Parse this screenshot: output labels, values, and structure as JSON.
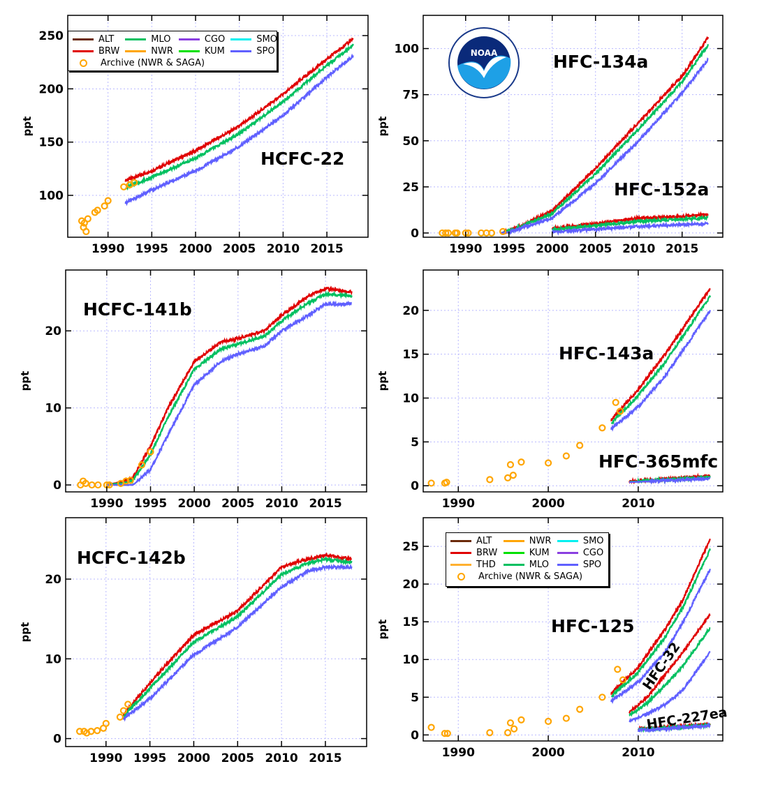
{
  "station_colors": {
    "ALT": "#6b2a0a",
    "BRW": "#e00000",
    "MLO": "#00c060",
    "NWR": "#ffa500",
    "CGO": "#8a3fe0",
    "KUM": "#00e000",
    "SMO": "#00f0f0",
    "SPO": "#6060ff",
    "THD": "#ffb030",
    "Archive": "#ffa500"
  },
  "legends": {
    "top": {
      "columns": 4,
      "items": [
        "ALT",
        "MLO",
        "CGO",
        "SMO",
        "BRW",
        "NWR",
        "KUM",
        "SPO"
      ],
      "archive": "Archive (NWR & SAGA)"
    },
    "bottom": {
      "columns": 3,
      "items": [
        "ALT",
        "NWR",
        "SMO",
        "BRW",
        "KUM",
        "CGO",
        "THD",
        "MLO",
        "SPO"
      ],
      "archive": "Archive (NWR & SAGA)"
    }
  },
  "logo": {
    "text": "NOAA",
    "ring_text": "NATIONAL OCEANIC AND ATMOSPHERIC ADMINISTRATION · U.S. DEPARTMENT OF COMMERCE"
  },
  "chart_data": [
    {
      "type": "line",
      "ylabel": "ppt",
      "xlim": [
        1985.4,
        2019.7
      ],
      "ylim": [
        60.7,
        269
      ],
      "xticks": [
        1990,
        1995,
        2000,
        2005,
        2010,
        2015
      ],
      "yticks": [
        100,
        150,
        200,
        250
      ],
      "grid": true,
      "legend": "top-left",
      "compounds": [
        {
          "name": "HCFC-22",
          "x": [
            1992,
            1995,
            2000,
            2005,
            2010,
            2015,
            2018
          ],
          "series": [
            {
              "name": "BRW",
              "values": [
                114,
                123,
                142,
                165,
                195,
                228,
                247
              ]
            },
            {
              "name": "MLO",
              "values": [
                107,
                117,
                135,
                158,
                188,
                222,
                241
              ]
            },
            {
              "name": "SPO",
              "values": [
                93,
                105,
                123,
                146,
                175,
                211,
                231
              ]
            }
          ]
        }
      ],
      "archive": [
        [
          1987,
          76
        ],
        [
          1987.2,
          70
        ],
        [
          1987.3,
          74
        ],
        [
          1987.5,
          66
        ],
        [
          1987.7,
          78
        ],
        [
          1988.5,
          84
        ],
        [
          1988.8,
          86
        ],
        [
          1989.6,
          90
        ],
        [
          1990,
          95
        ],
        [
          1991.8,
          108
        ],
        [
          1992.5,
          110
        ],
        [
          1993,
          112
        ]
      ]
    },
    {
      "type": "line",
      "ylabel": "ppt",
      "xlim": [
        1985.1,
        2019.7
      ],
      "ylim": [
        -2.3,
        118
      ],
      "xticks": [
        1990,
        1995,
        2000,
        2005,
        2010,
        2015
      ],
      "yticks": [
        0,
        25,
        50,
        75,
        100
      ],
      "grid": true,
      "compounds": [
        {
          "name": "HFC-134a",
          "x": [
            1994,
            1995,
            2000,
            2005,
            2010,
            2015,
            2018
          ],
          "series": [
            {
              "name": "BRW",
              "values": [
                0,
                1,
                12,
                35,
                60,
                85,
                106
              ]
            },
            {
              "name": "MLO",
              "values": [
                0,
                0.8,
                10.6,
                32,
                56.5,
                82,
                102
              ]
            },
            {
              "name": "SPO",
              "values": [
                0,
                0.5,
                8,
                27,
                50,
                76,
                94
              ]
            }
          ]
        },
        {
          "name": "HFC-152a",
          "x": [
            2000,
            2005,
            2010,
            2015,
            2018
          ],
          "series": [
            {
              "name": "BRW",
              "values": [
                2.5,
                5,
                8,
                9,
                10
              ]
            },
            {
              "name": "MLO",
              "values": [
                1.8,
                4,
                6.4,
                7.4,
                8.2
              ]
            },
            {
              "name": "SPO",
              "values": [
                0.5,
                2,
                3.5,
                4.5,
                5
              ]
            }
          ]
        }
      ],
      "archive": [
        [
          1987.3,
          0
        ],
        [
          1987.7,
          0
        ],
        [
          1988,
          0
        ],
        [
          1988.8,
          0
        ],
        [
          1989,
          0
        ],
        [
          1990,
          0
        ],
        [
          1990.3,
          0
        ],
        [
          1991.8,
          0
        ],
        [
          1992.4,
          0
        ],
        [
          1993,
          0
        ],
        [
          1994.3,
          0.8
        ]
      ]
    },
    {
      "type": "line",
      "ylabel": "ppt",
      "xlim": [
        1985.3,
        2019.7
      ],
      "ylim": [
        -0.9,
        27.9
      ],
      "xticks": [
        1990,
        1995,
        2000,
        2005,
        2010,
        2015
      ],
      "yticks": [
        0,
        10,
        20
      ],
      "grid": true,
      "compounds": [
        {
          "name": "HCFC-141b",
          "x": [
            1990,
            1992,
            1993,
            1995,
            1997,
            2000,
            2003,
            2005,
            2008,
            2010,
            2013,
            2015,
            2018
          ],
          "series": [
            {
              "name": "BRW",
              "values": [
                0,
                0.5,
                1,
                5,
                10,
                16,
                18.5,
                19,
                20,
                22,
                24.5,
                25.5,
                25
              ]
            },
            {
              "name": "MLO",
              "values": [
                0,
                0.3,
                0.6,
                4,
                8.8,
                15,
                17.6,
                18.3,
                19.3,
                21.3,
                23.6,
                24.8,
                24.5
              ]
            },
            {
              "name": "SPO",
              "values": [
                0,
                0,
                0,
                2,
                6.5,
                13,
                16,
                17,
                18,
                20,
                22,
                23.5,
                23.5
              ]
            }
          ]
        }
      ],
      "archive": [
        [
          1987,
          0
        ],
        [
          1987.3,
          0.5
        ],
        [
          1987.6,
          0.2
        ],
        [
          1988.3,
          0
        ],
        [
          1989,
          0
        ],
        [
          1990,
          0
        ],
        [
          1990.3,
          0
        ],
        [
          1991.6,
          0.2
        ],
        [
          1992.2,
          0.5
        ],
        [
          1992.7,
          0.6
        ],
        [
          1994,
          2.6
        ],
        [
          1995,
          4.3
        ]
      ]
    },
    {
      "type": "line",
      "ylabel": "ppt",
      "xlim": [
        1986.1,
        2019.4
      ],
      "ylim": [
        -0.7,
        24.6
      ],
      "xticks": [
        1990,
        2000,
        2010
      ],
      "yticks": [
        0,
        5,
        10,
        15,
        20
      ],
      "grid": true,
      "compounds": [
        {
          "name": "HFC-143a",
          "x": [
            2007,
            2010,
            2013,
            2015,
            2018
          ],
          "series": [
            {
              "name": "BRW",
              "values": [
                7.5,
                11,
                15,
                18,
                22.5
              ]
            },
            {
              "name": "MLO",
              "values": [
                7.1,
                10.3,
                14.1,
                17.1,
                21.6
              ]
            },
            {
              "name": "SPO",
              "values": [
                6.5,
                9,
                12.5,
                15.5,
                20
              ]
            }
          ]
        },
        {
          "name": "HFC-365mfc",
          "x": [
            2009,
            2018
          ],
          "series": [
            {
              "name": "BRW",
              "values": [
                0.5,
                1.1
              ]
            },
            {
              "name": "MLO",
              "values": [
                0.45,
                1.0
              ]
            },
            {
              "name": "SPO",
              "values": [
                0.4,
                0.8
              ]
            }
          ]
        }
      ],
      "archive": [
        [
          1987,
          0.3
        ],
        [
          1988.5,
          0.3
        ],
        [
          1988.7,
          0.4
        ],
        [
          1993.5,
          0.7
        ],
        [
          1995.5,
          0.9
        ],
        [
          1995.8,
          2.4
        ],
        [
          1996.1,
          1.2
        ],
        [
          1997,
          2.7
        ],
        [
          2000,
          2.6
        ],
        [
          2002,
          3.4
        ],
        [
          2003.5,
          4.6
        ],
        [
          2006,
          6.6
        ],
        [
          2007.5,
          9.5
        ],
        [
          2008,
          8.5
        ]
      ]
    },
    {
      "type": "line",
      "ylabel": "ppt",
      "xlim": [
        1985.4,
        2019.7
      ],
      "ylim": [
        -1,
        27.7
      ],
      "xticks": [
        1990,
        1995,
        2000,
        2005,
        2010,
        2015
      ],
      "yticks": [
        0,
        10,
        20
      ],
      "grid": true,
      "compounds": [
        {
          "name": "HCFC-142b",
          "x": [
            1992,
            1995,
            2000,
            2005,
            2010,
            2013,
            2015,
            2018
          ],
          "series": [
            {
              "name": "BRW",
              "values": [
                3,
                7,
                13,
                16,
                21.5,
                22.5,
                23,
                22.5
              ]
            },
            {
              "name": "MLO",
              "values": [
                2.8,
                6.3,
                12.1,
                15.3,
                20.6,
                22,
                22.5,
                22.1
              ]
            },
            {
              "name": "SPO",
              "values": [
                2.5,
                5,
                10.5,
                14,
                19,
                21,
                21.5,
                21.5
              ]
            }
          ]
        }
      ],
      "archive": [
        [
          1987,
          0.9
        ],
        [
          1987.5,
          0.9
        ],
        [
          1987.8,
          0.7
        ],
        [
          1988.3,
          0.9
        ],
        [
          1989,
          1
        ],
        [
          1989.7,
          1.3
        ],
        [
          1990,
          1.9
        ],
        [
          1991.6,
          2.7
        ],
        [
          1992,
          3.5
        ],
        [
          1992.5,
          4.3
        ]
      ]
    },
    {
      "type": "line",
      "ylabel": "ppt",
      "xlim": [
        1986.1,
        2019.4
      ],
      "ylim": [
        -0.8,
        28.8
      ],
      "xticks": [
        1990,
        2000,
        2010
      ],
      "yticks": [
        0,
        5,
        10,
        15,
        20,
        25
      ],
      "grid": true,
      "legend": "top-left",
      "compounds": [
        {
          "name": "HFC-125",
          "x": [
            2007,
            2010,
            2013,
            2015,
            2018
          ],
          "series": [
            {
              "name": "BRW",
              "values": [
                5.5,
                9,
                14,
                18,
                26
              ]
            },
            {
              "name": "MLO",
              "values": [
                5.1,
                8.3,
                13,
                17,
                24.6
              ]
            },
            {
              "name": "SPO",
              "values": [
                4.5,
                7,
                11,
                15,
                22
              ]
            }
          ]
        },
        {
          "name": "HFC-32",
          "x": [
            2009,
            2011,
            2013,
            2015,
            2018
          ],
          "series": [
            {
              "name": "BRW",
              "values": [
                3,
                5,
                8,
                11,
                16
              ]
            },
            {
              "name": "MLO",
              "values": [
                2.6,
                4.2,
                6.6,
                9.2,
                14.2
              ]
            },
            {
              "name": "SPO",
              "values": [
                1.8,
                2.8,
                4,
                6,
                11
              ]
            }
          ]
        },
        {
          "name": "HFC-227ea",
          "x": [
            2010,
            2018
          ],
          "series": [
            {
              "name": "BRW",
              "values": [
                0.8,
                1.4
              ]
            },
            {
              "name": "MLO",
              "values": [
                0.7,
                1.3
              ]
            },
            {
              "name": "SPO",
              "values": [
                0.6,
                1.2
              ]
            }
          ]
        }
      ],
      "archive": [
        [
          1987,
          1
        ],
        [
          1988.5,
          0.2
        ],
        [
          1988.8,
          0.2
        ],
        [
          1993.5,
          0.3
        ],
        [
          1995.5,
          0.3
        ],
        [
          1995.8,
          1.6
        ],
        [
          1996.2,
          0.8
        ],
        [
          1997,
          2
        ],
        [
          2000,
          1.8
        ],
        [
          2002,
          2.2
        ],
        [
          2003.5,
          3.4
        ],
        [
          2006,
          5
        ],
        [
          2007.7,
          8.7
        ],
        [
          2008.3,
          7.3
        ]
      ]
    }
  ]
}
